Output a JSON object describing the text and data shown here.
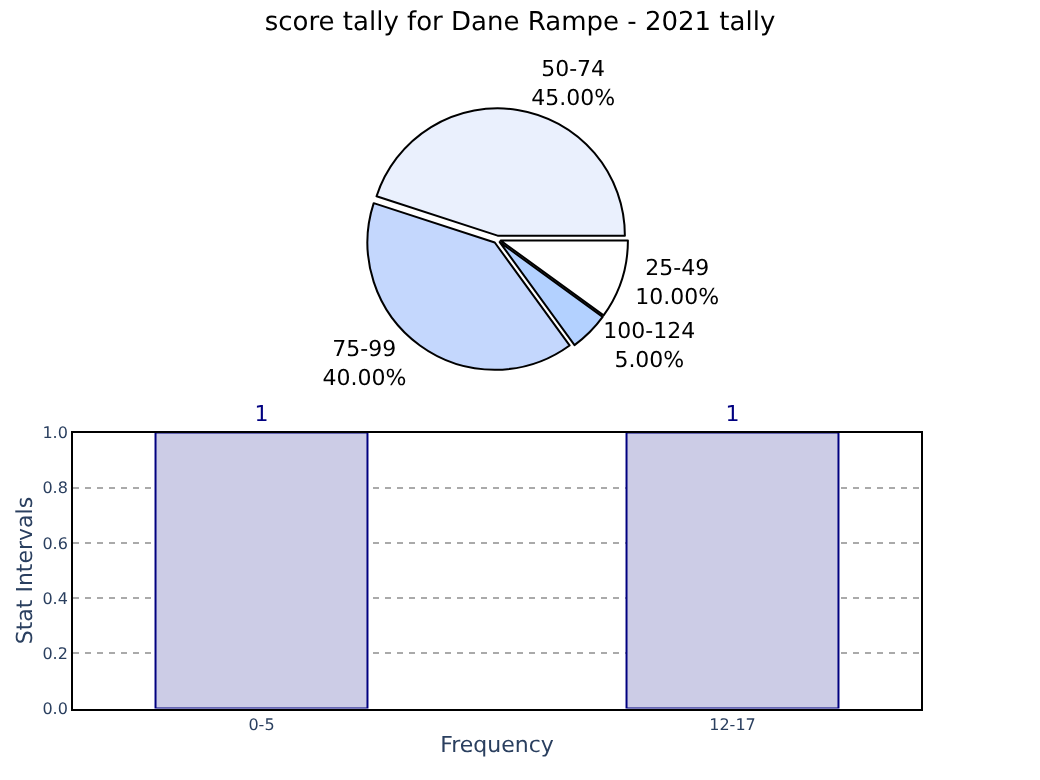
{
  "chart_data": [
    {
      "type": "pie",
      "title": "score tally for Dane Rampe - 2021 tally",
      "categories": [
        "25-49",
        "50-74",
        "75-99",
        "100-124"
      ],
      "values": [
        10,
        45,
        40,
        5
      ],
      "colors": [
        "#ffffff",
        "#eaf0fd",
        "#c4d7fd",
        "#b3d1ff"
      ],
      "value_labels": [
        "10.00%",
        "45.00%",
        "40.00%",
        "5.00%"
      ],
      "legend": false
    },
    {
      "type": "bar",
      "categories": [
        "0-5",
        "12-17"
      ],
      "values": [
        1,
        1
      ],
      "color": "#ccccE6",
      "xlabel": "Frequency",
      "ylabel": "Stat Intervals",
      "ylim": [
        0,
        1
      ],
      "yticks": [
        {
          "value": 0,
          "label": "0.0"
        },
        {
          "value": 0.2,
          "label": "0.2"
        },
        {
          "value": 0.4,
          "label": "0.4"
        },
        {
          "value": 0.6,
          "label": "0.6"
        },
        {
          "value": 0.8,
          "label": "0.8"
        },
        {
          "value": 1,
          "label": "1.0"
        }
      ],
      "data_labels": true,
      "grid": true,
      "legend": false
    }
  ]
}
